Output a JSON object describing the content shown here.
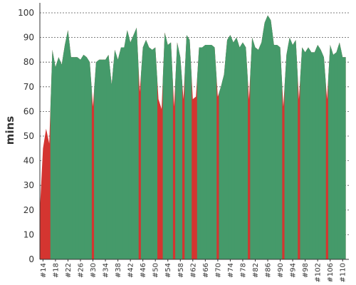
{
  "chart_data": {
    "type": "area",
    "title": "",
    "xlabel": "",
    "ylabel": "mins",
    "ylim": [
      0,
      100
    ],
    "yticks": [
      0,
      10,
      20,
      30,
      40,
      50,
      60,
      70,
      80,
      90,
      100
    ],
    "grid": true,
    "threshold_minutes": 70,
    "colors": {
      "above": "#459a6a",
      "below": "#d43530"
    },
    "x_start": 13,
    "x_end": 112,
    "x_tick_labels": [
      "#14",
      "#18",
      "#22",
      "#26",
      "#30",
      "#34",
      "#38",
      "#42",
      "#46",
      "#50",
      "#54",
      "#58",
      "#62",
      "#66",
      "#70",
      "#74",
      "#78",
      "#82",
      "#86",
      "#90",
      "#94",
      "#98",
      "#102",
      "#106",
      "#110"
    ],
    "series": [
      {
        "values": [
          20,
          45,
          53,
          47,
          85,
          78,
          82,
          79,
          87,
          93,
          82,
          82,
          82,
          81,
          83,
          82,
          80,
          62,
          80,
          81,
          81,
          81,
          83,
          71,
          85,
          81,
          86,
          86,
          93,
          88,
          91,
          94,
          68,
          86,
          89,
          86,
          85,
          86,
          65,
          61,
          92,
          87,
          88,
          62,
          88,
          82,
          65,
          91,
          89,
          65,
          66,
          86,
          86,
          87,
          87,
          87,
          86,
          66,
          70,
          75,
          89,
          91,
          88,
          90,
          86,
          88,
          86,
          65,
          90,
          86,
          85,
          88,
          96,
          99,
          97,
          87,
          87,
          86,
          62,
          83,
          90,
          87,
          89,
          65,
          86,
          84,
          86,
          84,
          84,
          87,
          85,
          82,
          65,
          87,
          83,
          84,
          88,
          82,
          82
        ]
      }
    ]
  }
}
